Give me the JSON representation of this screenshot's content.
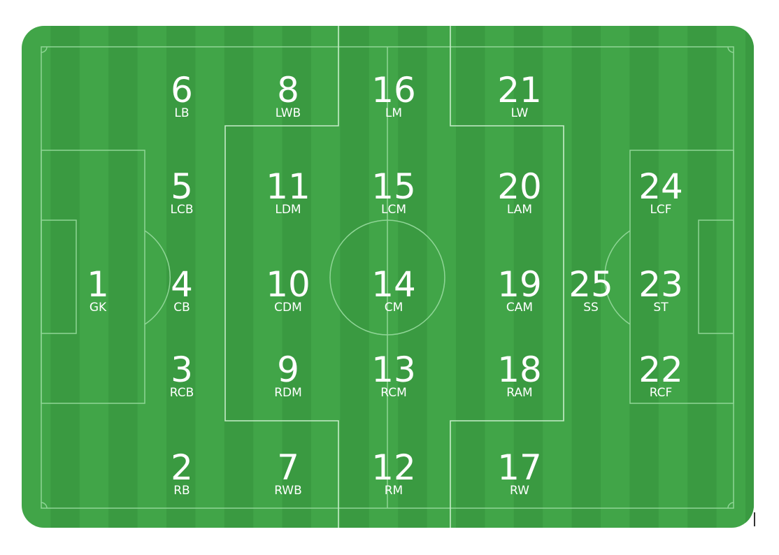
{
  "colors": {
    "pitch": "#41a548",
    "stripe_dark": "#3a9a41",
    "lines": "#8fd596",
    "text": "#ffffff"
  },
  "positions": [
    {
      "number": "1",
      "label": "GK"
    },
    {
      "number": "2",
      "label": "RB"
    },
    {
      "number": "3",
      "label": "RCB"
    },
    {
      "number": "4",
      "label": "CB"
    },
    {
      "number": "5",
      "label": "LCB"
    },
    {
      "number": "6",
      "label": "LB"
    },
    {
      "number": "7",
      "label": "RWB"
    },
    {
      "number": "8",
      "label": "LWB"
    },
    {
      "number": "9",
      "label": "RDM"
    },
    {
      "number": "10",
      "label": "CDM"
    },
    {
      "number": "11",
      "label": "LDM"
    },
    {
      "number": "12",
      "label": "RM"
    },
    {
      "number": "13",
      "label": "RCM"
    },
    {
      "number": "14",
      "label": "CM"
    },
    {
      "number": "15",
      "label": "LCM"
    },
    {
      "number": "16",
      "label": "LM"
    },
    {
      "number": "17",
      "label": "RW"
    },
    {
      "number": "18",
      "label": "RAM"
    },
    {
      "number": "19",
      "label": "CAM"
    },
    {
      "number": "20",
      "label": "LAM"
    },
    {
      "number": "21",
      "label": "LW"
    },
    {
      "number": "22",
      "label": "RCF"
    },
    {
      "number": "23",
      "label": "ST"
    },
    {
      "number": "24",
      "label": "LCF"
    },
    {
      "number": "25",
      "label": "SS"
    }
  ]
}
